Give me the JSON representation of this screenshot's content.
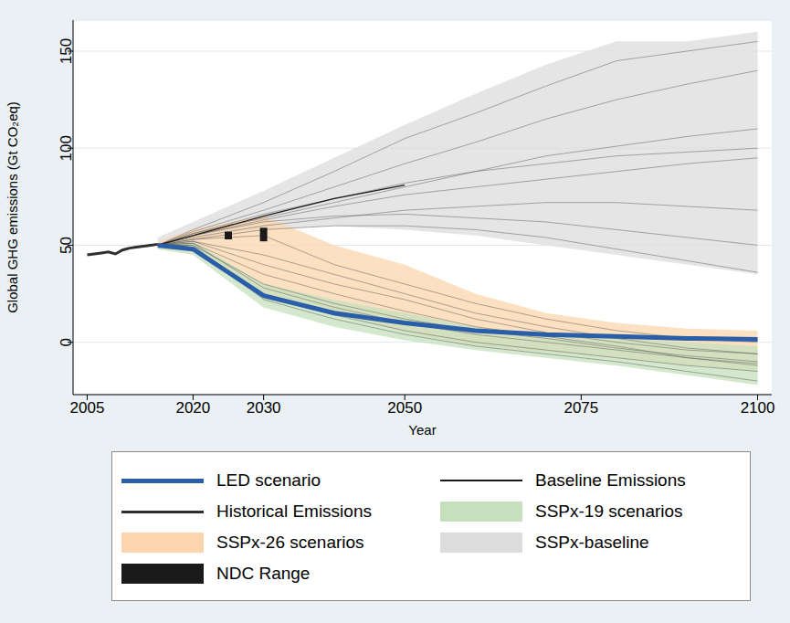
{
  "chart_data": {
    "type": "line",
    "x_label": "Year",
    "y_label": "Global GHG emissions (Gt CO₂eq)",
    "xlim": [
      2003,
      2102
    ],
    "xticks": [
      2005,
      2020,
      2030,
      2050,
      2075,
      2100
    ],
    "ylim": [
      -27,
      166
    ],
    "yticks": [
      0,
      50,
      100,
      150
    ],
    "grid": true,
    "legend": "bottom",
    "x": [
      2015,
      2020,
      2030,
      2040,
      2050,
      2060,
      2070,
      2080,
      2090,
      2100
    ],
    "series": [
      {
        "name": "LED scenario",
        "type": "line",
        "line_style": "heavy",
        "color": "#2b5ea8",
        "values": [
          50,
          48,
          24,
          15,
          10,
          6,
          4,
          3,
          2,
          1.5
        ]
      },
      {
        "name": "Baseline Emissions",
        "type": "line",
        "line_style": "thin",
        "color": "#1a1a1a",
        "x": [
          2015,
          2020,
          2030,
          2040,
          2050
        ],
        "values": [
          50,
          55,
          65,
          74,
          81
        ]
      },
      {
        "name": "Historical Emissions",
        "type": "line",
        "line_style": "medium",
        "color": "#2e2e2e",
        "x": [
          2005,
          2006,
          2007,
          2008,
          2009,
          2010,
          2011,
          2012,
          2013,
          2014,
          2015
        ],
        "values": [
          45,
          45.5,
          46,
          46.5,
          45.5,
          47.5,
          48.5,
          49,
          49.5,
          50,
          50.5
        ]
      },
      {
        "name": "SSPx-19 scenarios",
        "type": "range",
        "color": "#c6e0bd",
        "low": [
          48,
          45,
          18,
          8,
          1,
          -4,
          -8,
          -12,
          -17,
          -22
        ],
        "high": [
          51,
          52,
          30,
          22,
          15,
          8,
          4,
          2,
          0,
          -2
        ]
      },
      {
        "name": "SSPx-26 scenarios",
        "type": "range",
        "color": "#fbd5ae",
        "low": [
          48,
          47,
          22,
          15,
          5,
          -2,
          -5,
          -8,
          -12,
          -15
        ],
        "high": [
          52,
          58,
          65,
          50,
          40,
          25,
          15,
          10,
          7,
          6
        ]
      },
      {
        "name": "SSPx-baseline",
        "type": "range",
        "color": "#dcdcdc",
        "low": [
          48,
          52,
          58,
          60,
          58,
          55,
          50,
          45,
          40,
          35
        ],
        "high": [
          54,
          62,
          78,
          95,
          112,
          128,
          143,
          155,
          155,
          160
        ]
      },
      {
        "name": "NDC Range",
        "type": "range_bar",
        "color": "#1a1a1a",
        "x": [
          2025,
          2030
        ],
        "low": [
          53,
          52
        ],
        "high": [
          57,
          59
        ]
      }
    ],
    "scenario_lines": {
      "color": "#555555",
      "values": [
        [
          50,
          56,
          64,
          72,
          80,
          88,
          96,
          101,
          106,
          110
        ],
        [
          50,
          57,
          68,
          80,
          92,
          103,
          115,
          125,
          133,
          140
        ],
        [
          50,
          58,
          72,
          88,
          105,
          118,
          132,
          145,
          150,
          155
        ],
        [
          50,
          54,
          60,
          64,
          68,
          70,
          72,
          72,
          70,
          68
        ],
        [
          50,
          55,
          62,
          65,
          66,
          64,
          62,
          58,
          54,
          50
        ],
        [
          50,
          53,
          58,
          60,
          60,
          58,
          54,
          48,
          42,
          36
        ],
        [
          50,
          56,
          66,
          74,
          82,
          88,
          92,
          96,
          98,
          100
        ],
        [
          50,
          55,
          63,
          70,
          76,
          80,
          84,
          88,
          92,
          95
        ],
        [
          50,
          52,
          40,
          30,
          22,
          12,
          5,
          0,
          -4,
          -6
        ],
        [
          50,
          51,
          35,
          25,
          16,
          8,
          3,
          -2,
          -8,
          -12
        ],
        [
          50,
          50,
          30,
          20,
          12,
          6,
          2,
          -3,
          -7,
          -10
        ],
        [
          50,
          52,
          45,
          35,
          25,
          15,
          8,
          2,
          -3,
          -6
        ],
        [
          50,
          49,
          25,
          14,
          6,
          0,
          -4,
          -8,
          -12,
          -15
        ],
        [
          50,
          50,
          22,
          12,
          4,
          -2,
          -6,
          -10,
          -15,
          -20
        ],
        [
          50,
          53,
          55,
          40,
          30,
          20,
          12,
          6,
          2,
          0
        ],
        [
          50,
          51,
          28,
          18,
          10,
          4,
          0,
          -4,
          -8,
          -11
        ]
      ]
    }
  }
}
